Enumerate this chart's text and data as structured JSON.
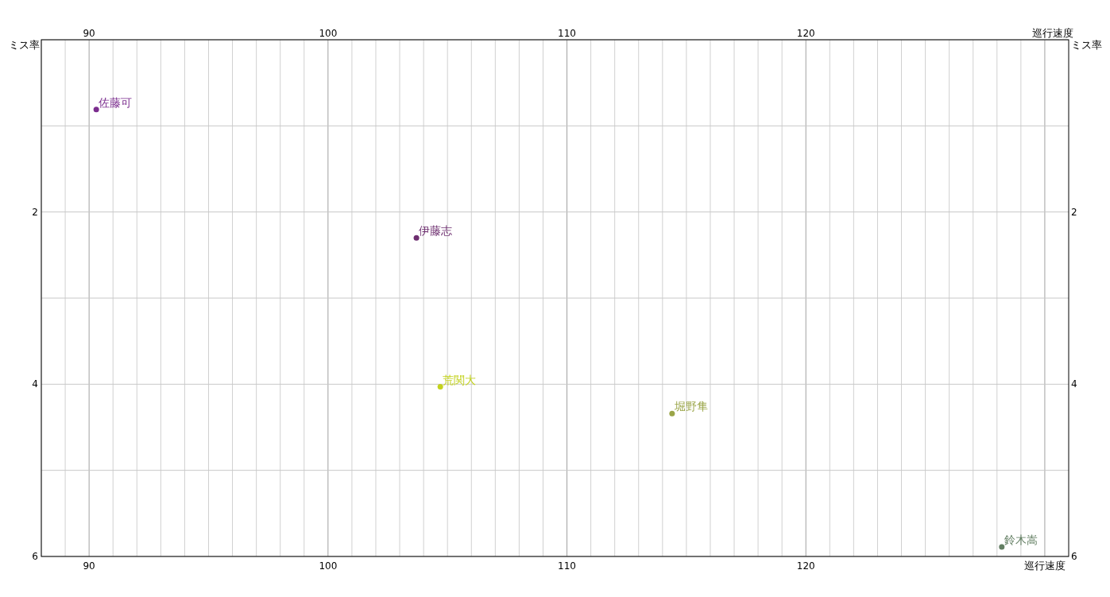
{
  "chart_data": {
    "type": "scatter",
    "xlabel": "巡行速度",
    "x2label": "巡行速度",
    "ylabel": "ミス率",
    "y2label": "ミス率",
    "xlim": [
      88,
      131
    ],
    "x2lim": [
      88,
      131
    ],
    "ylim": [
      6,
      0
    ],
    "y2lim": [
      6,
      0
    ],
    "xticks": [
      {
        "value": 88,
        "label": null
      },
      {
        "value": 89,
        "label": null
      },
      90,
      {
        "value": 91,
        "label": null
      },
      {
        "value": 92,
        "label": null
      },
      {
        "value": 93,
        "label": null
      },
      {
        "value": 94,
        "label": null
      },
      {
        "value": 95,
        "label": null
      },
      {
        "value": 96,
        "label": null
      },
      {
        "value": 97,
        "label": null
      },
      {
        "value": 98,
        "label": null
      },
      {
        "value": 99,
        "label": null
      },
      100,
      {
        "value": 101,
        "label": null
      },
      {
        "value": 102,
        "label": null
      },
      {
        "value": 103,
        "label": null
      },
      {
        "value": 104,
        "label": null
      },
      {
        "value": 105,
        "label": null
      },
      {
        "value": 106,
        "label": null
      },
      {
        "value": 107,
        "label": null
      },
      {
        "value": 108,
        "label": null
      },
      {
        "value": 109,
        "label": null
      },
      110,
      {
        "value": 111,
        "label": null
      },
      {
        "value": 112,
        "label": null
      },
      {
        "value": 113,
        "label": null
      },
      {
        "value": 114,
        "label": null
      },
      {
        "value": 115,
        "label": null
      },
      {
        "value": 116,
        "label": null
      },
      {
        "value": 117,
        "label": null
      },
      {
        "value": 118,
        "label": null
      },
      {
        "value": 119,
        "label": null
      },
      120,
      {
        "value": 121,
        "label": null
      },
      {
        "value": 122,
        "label": null
      },
      {
        "value": 123,
        "label": null
      },
      {
        "value": 124,
        "label": null
      },
      {
        "value": 125,
        "label": null
      },
      {
        "value": 126,
        "label": null
      },
      {
        "value": 127,
        "label": null
      },
      {
        "value": 128,
        "label": null
      },
      {
        "value": 129,
        "label": null
      },
      {
        "value": 130,
        "label": null
      }
    ],
    "x2ticks": [
      90,
      100,
      110,
      120
    ],
    "yticks": [
      {
        "value": 0,
        "label": null
      },
      {
        "value": 1,
        "label": null
      },
      2,
      {
        "value": 3,
        "label": null
      },
      4,
      {
        "value": 5,
        "label": null
      },
      6
    ],
    "y2ticks": [
      2,
      4,
      6
    ],
    "grid": true,
    "marker": "circle",
    "series": [
      {
        "name": "佐藤可",
        "color": "#7b2d8e",
        "x": [
          90.3
        ],
        "values": [
          0.81
        ]
      },
      {
        "name": "伊藤志",
        "color": "#6e2f70",
        "x": [
          103.7
        ],
        "values": [
          2.3
        ]
      },
      {
        "name": "荒関大",
        "color": "#c3d21c",
        "x": [
          104.7
        ],
        "values": [
          4.03
        ]
      },
      {
        "name": "堀野隼",
        "color": "#9aa548",
        "x": [
          114.4
        ],
        "values": [
          4.34
        ]
      },
      {
        "name": "鈴木嵩",
        "color": "#637f63",
        "x": [
          128.2
        ],
        "values": [
          5.89
        ]
      }
    ]
  }
}
